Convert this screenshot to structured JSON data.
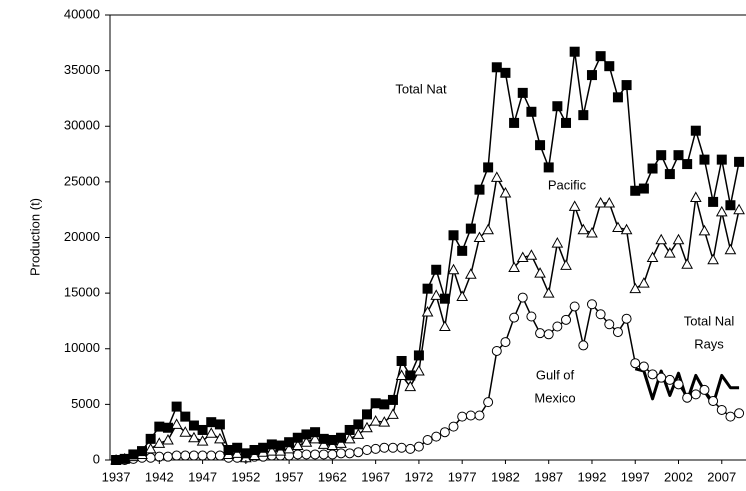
{
  "chart_data": {
    "type": "line",
    "y_label": "Production (t)",
    "x": [
      1937,
      1938,
      1939,
      1940,
      1941,
      1942,
      1943,
      1944,
      1945,
      1946,
      1947,
      1948,
      1949,
      1950,
      1951,
      1952,
      1953,
      1954,
      1955,
      1956,
      1957,
      1958,
      1959,
      1960,
      1961,
      1962,
      1963,
      1964,
      1965,
      1966,
      1967,
      1968,
      1969,
      1970,
      1971,
      1972,
      1973,
      1974,
      1975,
      1976,
      1977,
      1978,
      1979,
      1980,
      1981,
      1982,
      1983,
      1984,
      1985,
      1986,
      1987,
      1988,
      1989,
      1990,
      1991,
      1992,
      1993,
      1994,
      1995,
      1996,
      1997,
      1998,
      1999,
      2000,
      2001,
      2002,
      2003,
      2004,
      2005,
      2006,
      2007,
      2008,
      2009
    ],
    "series": [
      {
        "marker": "circle",
        "color": "#000000",
        "values": [
          0,
          0,
          100,
          200,
          200,
          300,
          300,
          400,
          400,
          400,
          400,
          400,
          400,
          200,
          200,
          200,
          300,
          300,
          400,
          400,
          400,
          500,
          500,
          500,
          500,
          500,
          600,
          600,
          700,
          900,
          1000,
          1100,
          1100,
          1100,
          1000,
          1200,
          1800,
          2100,
          2500,
          3000,
          3900,
          4000,
          4000,
          5200,
          9800,
          10600,
          12800,
          14600,
          12900,
          11400,
          11300,
          12000,
          12600,
          13800,
          10300,
          14000,
          13100,
          12200,
          11500,
          12700,
          8700,
          8400,
          7700,
          7400,
          7200,
          6800,
          5600,
          5900,
          6300,
          5300,
          4500,
          3900,
          4200
        ]
      },
      {
        "marker": "triangle",
        "color": "#000000",
        "values": [
          0,
          100,
          300,
          500,
          1000,
          1500,
          1800,
          3200,
          2500,
          2000,
          1700,
          2400,
          1900,
          500,
          600,
          200,
          400,
          700,
          800,
          800,
          1000,
          1300,
          1600,
          1900,
          1400,
          1300,
          1500,
          1900,
          2300,
          2900,
          3500,
          3400,
          4100,
          7600,
          6600,
          8000,
          13300,
          14800,
          12000,
          17100,
          14700,
          16700,
          20000,
          20700,
          25400,
          24000,
          17300,
          18200,
          18400,
          16800,
          15000,
          19500,
          17500,
          22800,
          20700,
          20400,
          23100,
          23100,
          20900,
          20700,
          15400,
          15900,
          18200,
          19800,
          18600,
          19800,
          17600,
          23600,
          20600,
          18000,
          22300,
          18900,
          22500
        ]
      },
      {
        "marker": "square",
        "color": "#000000",
        "values": [
          0,
          100,
          500,
          800,
          1900,
          3000,
          2900,
          4800,
          3900,
          3100,
          2700,
          3400,
          3200,
          900,
          1100,
          600,
          900,
          1100,
          1400,
          1300,
          1600,
          2000,
          2300,
          2500,
          1900,
          1800,
          2000,
          2700,
          3200,
          4100,
          5100,
          5000,
          5400,
          8900,
          7600,
          9400,
          15400,
          17100,
          14500,
          20200,
          18800,
          20800,
          24300,
          26300,
          35300,
          34800,
          30300,
          33000,
          31300,
          28300,
          26300,
          31800,
          30300,
          36700,
          31000,
          34600,
          36300,
          35400,
          32600,
          33700,
          24200,
          24400,
          26200,
          27400,
          25700,
          27400,
          26600,
          29600,
          27000,
          23200,
          27000,
          22900,
          26800
        ]
      },
      {
        "marker": "none",
        "color": "#000000",
        "values": [
          null,
          null,
          null,
          null,
          null,
          null,
          null,
          null,
          null,
          null,
          null,
          null,
          null,
          null,
          null,
          null,
          null,
          null,
          null,
          null,
          null,
          null,
          null,
          null,
          null,
          null,
          null,
          null,
          null,
          null,
          null,
          null,
          null,
          null,
          null,
          null,
          null,
          null,
          null,
          null,
          null,
          null,
          null,
          null,
          null,
          null,
          null,
          null,
          null,
          null,
          null,
          null,
          null,
          null,
          null,
          null,
          null,
          null,
          null,
          null,
          8200,
          8000,
          5500,
          8000,
          5800,
          7800,
          5300,
          7600,
          6200,
          5000,
          7600,
          6500,
          6500
        ]
      }
    ],
    "annotations": [
      {
        "lines": [
          "Total Nat"
        ]
      },
      {
        "lines": [
          "Pacific"
        ]
      },
      {
        "lines": [
          "Gulf of",
          "Mexico"
        ]
      },
      {
        "lines": [
          "Total Nal",
          "Rays"
        ]
      }
    ],
    "xlim": [
      1936.3,
      2009.8
    ],
    "xticks": [
      1937,
      1942,
      1947,
      1952,
      1957,
      1962,
      1967,
      1972,
      1977,
      1982,
      1987,
      1992,
      1997,
      2002,
      2007
    ],
    "ylim": [
      0,
      40000
    ],
    "yticks": [
      0,
      5000,
      10000,
      15000,
      20000,
      25000,
      30000,
      35000,
      40000
    ],
    "grid": false
  }
}
